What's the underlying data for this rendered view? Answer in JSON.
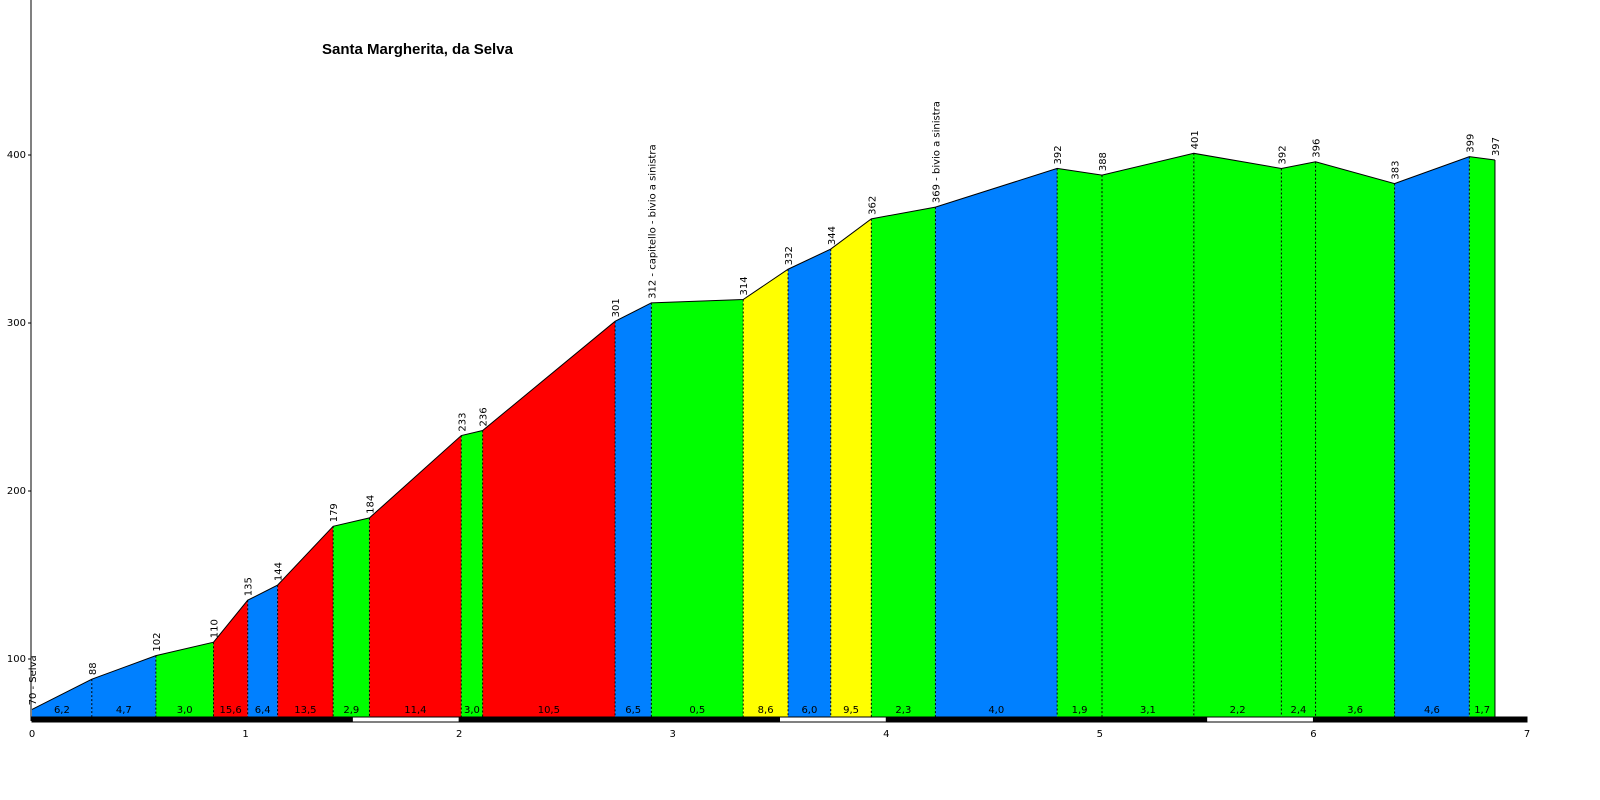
{
  "chart_data": {
    "type": "area",
    "title": "Santa Margherita, da Selva",
    "xlabel": "",
    "ylabel": "",
    "xlim": [
      0,
      7
    ],
    "ylim": [
      70,
      480
    ],
    "x_ticks": [
      "0",
      "1",
      "2",
      "3",
      "4",
      "5",
      "6",
      "7"
    ],
    "y_ticks": [
      "100",
      "200",
      "300",
      "400"
    ],
    "grid": false,
    "gradient_colors": {
      "blue": "#0080ff",
      "green": "#00ff00",
      "red": "#ff0000",
      "yellow": "#ffff00"
    },
    "points": [
      {
        "x": 0.0,
        "y": 70,
        "label": "70 - Selva"
      },
      {
        "x": 0.28,
        "y": 88,
        "label": "88"
      },
      {
        "x": 0.58,
        "y": 102,
        "label": "102"
      },
      {
        "x": 0.85,
        "y": 110,
        "label": "110"
      },
      {
        "x": 1.01,
        "y": 135,
        "label": "135"
      },
      {
        "x": 1.15,
        "y": 144,
        "label": "144"
      },
      {
        "x": 1.41,
        "y": 179,
        "label": "179"
      },
      {
        "x": 1.58,
        "y": 184,
        "label": "184"
      },
      {
        "x": 2.01,
        "y": 233,
        "label": "233"
      },
      {
        "x": 2.11,
        "y": 236,
        "label": "236"
      },
      {
        "x": 2.73,
        "y": 301,
        "label": "301"
      },
      {
        "x": 2.9,
        "y": 312,
        "label": "312 - capitello - bivio a sinistra"
      },
      {
        "x": 3.33,
        "y": 314,
        "label": "314"
      },
      {
        "x": 3.54,
        "y": 332,
        "label": "332"
      },
      {
        "x": 3.74,
        "y": 344,
        "label": "344"
      },
      {
        "x": 3.93,
        "y": 362,
        "label": "362"
      },
      {
        "x": 4.23,
        "y": 369,
        "label": "369 - bivio a sinistra"
      },
      {
        "x": 4.8,
        "y": 392,
        "label": "392"
      },
      {
        "x": 5.01,
        "y": 388,
        "label": "388"
      },
      {
        "x": 5.44,
        "y": 401,
        "label": "401"
      },
      {
        "x": 5.85,
        "y": 392,
        "label": "392"
      },
      {
        "x": 6.01,
        "y": 396,
        "label": "396"
      },
      {
        "x": 6.38,
        "y": 383,
        "label": "383"
      },
      {
        "x": 6.73,
        "y": 399,
        "label": "399"
      },
      {
        "x": 6.85,
        "y": 397,
        "label": "397"
      }
    ],
    "segments": [
      {
        "grade": "6,2",
        "color": "blue"
      },
      {
        "grade": "4,7",
        "color": "blue"
      },
      {
        "grade": "3,0",
        "color": "green"
      },
      {
        "grade": "15,6",
        "color": "red"
      },
      {
        "grade": "6,4",
        "color": "blue"
      },
      {
        "grade": "13,5",
        "color": "red"
      },
      {
        "grade": "2,9",
        "color": "green"
      },
      {
        "grade": "11,4",
        "color": "red"
      },
      {
        "grade": "3,0",
        "color": "green"
      },
      {
        "grade": "10,5",
        "color": "red"
      },
      {
        "grade": "6,5",
        "color": "blue"
      },
      {
        "grade": "0,5",
        "color": "green"
      },
      {
        "grade": "8,6",
        "color": "yellow"
      },
      {
        "grade": "6,0",
        "color": "blue"
      },
      {
        "grade": "9,5",
        "color": "yellow"
      },
      {
        "grade": "2,3",
        "color": "green"
      },
      {
        "grade": "4,0",
        "color": "blue"
      },
      {
        "grade": "1,9",
        "color": "green"
      },
      {
        "grade": "3,1",
        "color": "green"
      },
      {
        "grade": "2,2",
        "color": "green"
      },
      {
        "grade": "2,4",
        "color": "green"
      },
      {
        "grade": "3,6",
        "color": "green"
      },
      {
        "grade": "4,6",
        "color": "blue"
      },
      {
        "grade": "1,7",
        "color": "green"
      }
    ]
  }
}
